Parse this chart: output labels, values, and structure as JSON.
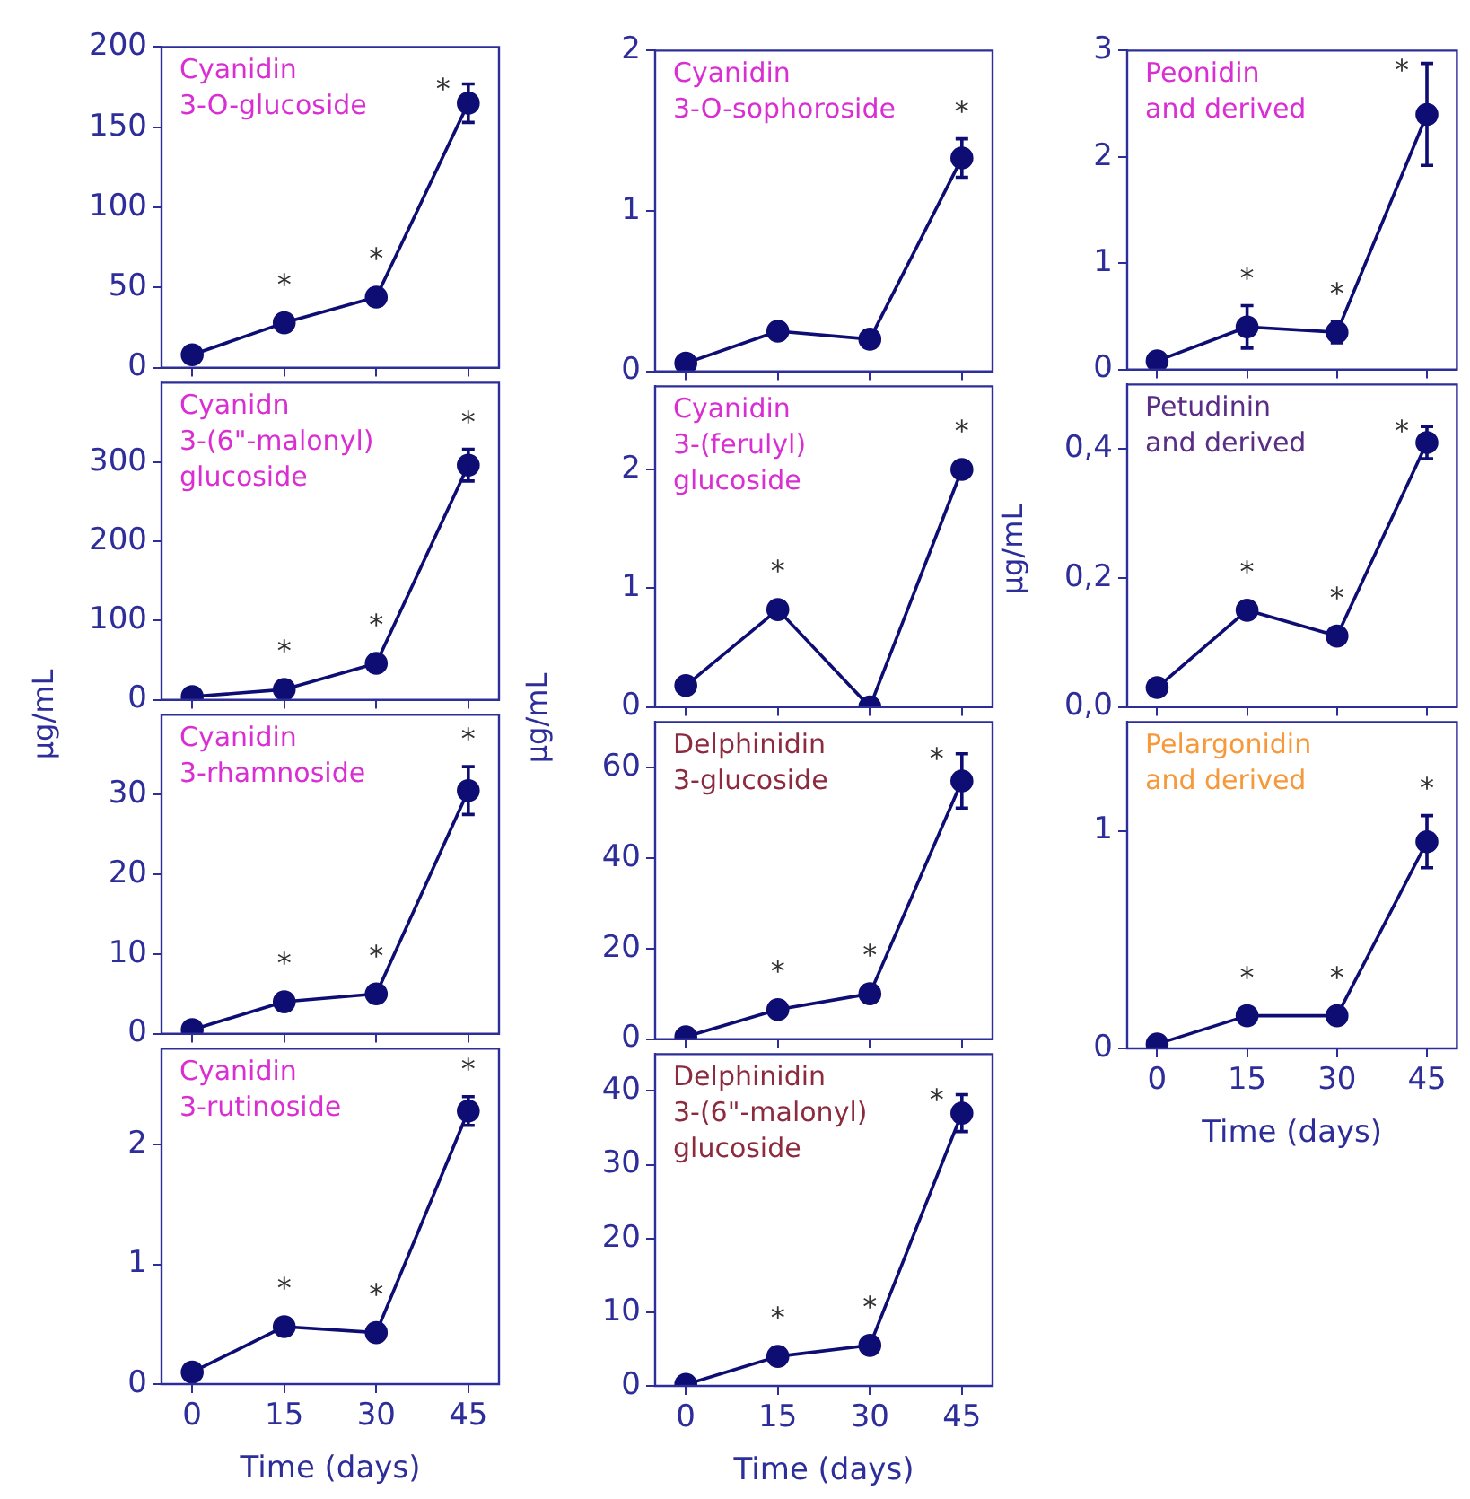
{
  "chart_data": [
    {
      "type": "line",
      "title": "Cyanidin 3-O-glucoside",
      "x": [
        0,
        15,
        30,
        45
      ],
      "xlim": [
        -5,
        50
      ],
      "xticks": [
        0,
        15,
        30,
        45
      ],
      "ylim": [
        0,
        200
      ],
      "yticks": [
        0,
        50,
        100,
        150,
        200
      ],
      "tick_labels": "y",
      "marker": "circle",
      "line_style": "solid",
      "series": [
        {
          "color": "#0d0d73",
          "values": [
            8,
            28,
            44,
            165
          ],
          "errors": [
            null,
            null,
            5,
            12
          ]
        }
      ],
      "annotations": [
        {
          "text": "*",
          "x": 15,
          "y": 28
        },
        {
          "text": "*",
          "x": 30,
          "y": 44
        },
        {
          "text": "*",
          "x": 45,
          "y": 165
        }
      ]
    },
    {
      "type": "line",
      "title": "Cyanidn 3-(6\"-malonyl) glucoside",
      "x": [
        0,
        15,
        30,
        45
      ],
      "xlim": [
        -5,
        50
      ],
      "xticks": [
        0,
        15,
        30,
        45
      ],
      "ylim": [
        0,
        400
      ],
      "yticks": [
        0,
        100,
        200,
        300
      ],
      "tick_labels": "y",
      "marker": "circle",
      "line_style": "solid",
      "series": [
        {
          "color": "#0d0d73",
          "values": [
            4,
            13,
            46,
            296
          ],
          "errors": [
            null,
            null,
            null,
            20
          ]
        }
      ],
      "annotations": [
        {
          "text": "*",
          "x": 15,
          "y": 13
        },
        {
          "text": "*",
          "x": 30,
          "y": 46
        },
        {
          "text": "*",
          "x": 45,
          "y": 296
        }
      ]
    },
    {
      "type": "line",
      "title": "Cyanidin 3-rhamnoside",
      "x": [
        0,
        15,
        30,
        45
      ],
      "xlim": [
        -5,
        50
      ],
      "xticks": [
        0,
        15,
        30,
        45
      ],
      "ylim": [
        0,
        40
      ],
      "yticks": [
        0,
        10,
        20,
        30
      ],
      "tick_labels": "y",
      "marker": "circle",
      "line_style": "solid",
      "ylabel": "µg/mL",
      "series": [
        {
          "color": "#0d0d73",
          "values": [
            0.5,
            4,
            5,
            30.5
          ],
          "errors": [
            null,
            null,
            null,
            3
          ]
        }
      ],
      "annotations": [
        {
          "text": "*",
          "x": 15,
          "y": 4
        },
        {
          "text": "*",
          "x": 30,
          "y": 5
        },
        {
          "text": "*",
          "x": 45,
          "y": 30.5
        }
      ]
    },
    {
      "type": "line",
      "title": "Cyanidin 3-rutinoside",
      "x": [
        0,
        15,
        30,
        45
      ],
      "xlim": [
        -5,
        50
      ],
      "xticks": [
        0,
        15,
        30,
        45
      ],
      "ylim": [
        0,
        2.8
      ],
      "yticks": [
        0,
        1,
        2
      ],
      "xlabel": "Time (days)",
      "marker": "circle",
      "line_style": "solid",
      "series": [
        {
          "color": "#0d0d73",
          "values": [
            0.1,
            0.48,
            0.43,
            2.28
          ],
          "errors": [
            null,
            null,
            null,
            0.12
          ]
        }
      ],
      "annotations": [
        {
          "text": "*",
          "x": 15,
          "y": 0.48
        },
        {
          "text": "*",
          "x": 30,
          "y": 0.43
        },
        {
          "text": "*",
          "x": 45,
          "y": 2.28
        }
      ]
    },
    {
      "type": "line",
      "title": "Cyanidin 3-O-sophoroside",
      "x": [
        0,
        15,
        30,
        45
      ],
      "xlim": [
        -5,
        50
      ],
      "xticks": [
        0,
        15,
        30,
        45
      ],
      "ylim": [
        0,
        2
      ],
      "yticks": [
        0,
        1,
        2
      ],
      "tick_labels": "y",
      "marker": "circle",
      "line_style": "solid",
      "series": [
        {
          "color": "#0d0d73",
          "values": [
            0.05,
            0.25,
            0.2,
            1.33
          ],
          "errors": [
            null,
            null,
            null,
            0.12
          ]
        }
      ],
      "annotations": [
        {
          "text": "*",
          "x": 45,
          "y": 1.33
        }
      ]
    },
    {
      "type": "line",
      "title": "Cyanidin 3-(ferulyl) glucoside",
      "x": [
        0,
        15,
        30,
        45
      ],
      "xlim": [
        -5,
        50
      ],
      "xticks": [
        0,
        15,
        30,
        45
      ],
      "ylim": [
        0,
        2.7
      ],
      "yticks": [
        0,
        1,
        2
      ],
      "tick_labels": "y",
      "marker": "circle",
      "line_style": "solid",
      "series": [
        {
          "color": "#0d0d73",
          "values": [
            0.18,
            0.82,
            0,
            2.0
          ]
        }
      ],
      "annotations": [
        {
          "text": "*",
          "x": 15,
          "y": 0.82
        },
        {
          "text": "*",
          "x": 45,
          "y": 2.0
        }
      ]
    },
    {
      "type": "line",
      "title": "Delphinidin 3-glucoside",
      "x": [
        0,
        15,
        30,
        45
      ],
      "xlim": [
        -5,
        50
      ],
      "xticks": [
        0,
        15,
        30,
        45
      ],
      "ylim": [
        0,
        70
      ],
      "yticks": [
        0,
        20,
        40,
        60
      ],
      "tick_labels": "y",
      "marker": "circle",
      "line_style": "solid",
      "ylabel": "µg/mL",
      "series": [
        {
          "color": "#0d0d73",
          "values": [
            0.5,
            6.5,
            10,
            57
          ],
          "errors": [
            null,
            null,
            null,
            6
          ]
        }
      ],
      "annotations": [
        {
          "text": "*",
          "x": 15,
          "y": 6.5
        },
        {
          "text": "*",
          "x": 30,
          "y": 10
        },
        {
          "text": "*",
          "x": 45,
          "y": 57
        }
      ]
    },
    {
      "type": "line",
      "title": "Delphinidin 3-(6\"-malonyl) glucoside",
      "x": [
        0,
        15,
        30,
        45
      ],
      "xlim": [
        -5,
        50
      ],
      "xticks": [
        0,
        15,
        30,
        45
      ],
      "ylim": [
        0,
        45
      ],
      "yticks": [
        0,
        10,
        20,
        30,
        40
      ],
      "xlabel": "Time (days)",
      "marker": "circle",
      "line_style": "solid",
      "series": [
        {
          "color": "#0d0d73",
          "values": [
            0.2,
            4,
            5.5,
            37
          ],
          "errors": [
            null,
            null,
            null,
            2.5
          ]
        }
      ],
      "annotations": [
        {
          "text": "*",
          "x": 15,
          "y": 4
        },
        {
          "text": "*",
          "x": 30,
          "y": 5.5
        },
        {
          "text": "*",
          "x": 45,
          "y": 37
        }
      ]
    },
    {
      "type": "line",
      "title": "Peonidin and derived",
      "x": [
        0,
        15,
        30,
        45
      ],
      "xlim": [
        -5,
        50
      ],
      "xticks": [
        0,
        15,
        30,
        45
      ],
      "ylim": [
        0,
        3
      ],
      "yticks": [
        0,
        1,
        2,
        3
      ],
      "tick_labels": "y",
      "marker": "circle",
      "line_style": "solid",
      "series": [
        {
          "color": "#0d0d73",
          "values": [
            0.08,
            0.4,
            0.35,
            2.4
          ],
          "errors": [
            null,
            0.2,
            0.1,
            0.48
          ]
        }
      ],
      "annotations": [
        {
          "text": "*",
          "x": 15,
          "y": 0.4
        },
        {
          "text": "*",
          "x": 30,
          "y": 0.35
        },
        {
          "text": "*",
          "x": 45,
          "y": 2.4
        }
      ]
    },
    {
      "type": "line",
      "title": "Petudinin and derived",
      "x": [
        0,
        15,
        30,
        45
      ],
      "xlim": [
        -5,
        50
      ],
      "xticks": [
        0,
        15,
        30,
        45
      ],
      "ylim": [
        0,
        0.5
      ],
      "yticks": [
        {
          "value": 0,
          "label": "0,0"
        },
        {
          "value": 0.2,
          "label": "0,2"
        },
        {
          "value": 0.4,
          "label": "0,4"
        }
      ],
      "tick_labels": "y",
      "marker": "circle",
      "line_style": "solid",
      "ylabel": "µg/mL",
      "series": [
        {
          "color": "#0d0d73",
          "values": [
            0.03,
            0.15,
            0.11,
            0.41
          ],
          "errors": [
            null,
            null,
            null,
            0.025
          ]
        }
      ],
      "annotations": [
        {
          "text": "*",
          "x": 15,
          "y": 0.15
        },
        {
          "text": "*",
          "x": 30,
          "y": 0.11
        },
        {
          "text": "*",
          "x": 45,
          "y": 0.41
        }
      ]
    },
    {
      "type": "line",
      "title": "Pelargonidin and derived",
      "x": [
        0,
        15,
        30,
        45
      ],
      "xlim": [
        -5,
        50
      ],
      "xticks": [
        0,
        15,
        30,
        45
      ],
      "ylim": [
        0,
        1.5
      ],
      "yticks": [
        0,
        1
      ],
      "xlabel": "Time (days)",
      "marker": "circle",
      "line_style": "solid",
      "series": [
        {
          "color": "#0d0d73",
          "values": [
            0.02,
            0.15,
            0.15,
            0.95
          ],
          "errors": [
            null,
            null,
            null,
            0.12
          ]
        }
      ],
      "annotations": [
        {
          "text": "*",
          "x": 15,
          "y": 0.15
        },
        {
          "text": "*",
          "x": 30,
          "y": 0.15
        },
        {
          "text": "*",
          "x": 45,
          "y": 0.95
        }
      ]
    }
  ]
}
